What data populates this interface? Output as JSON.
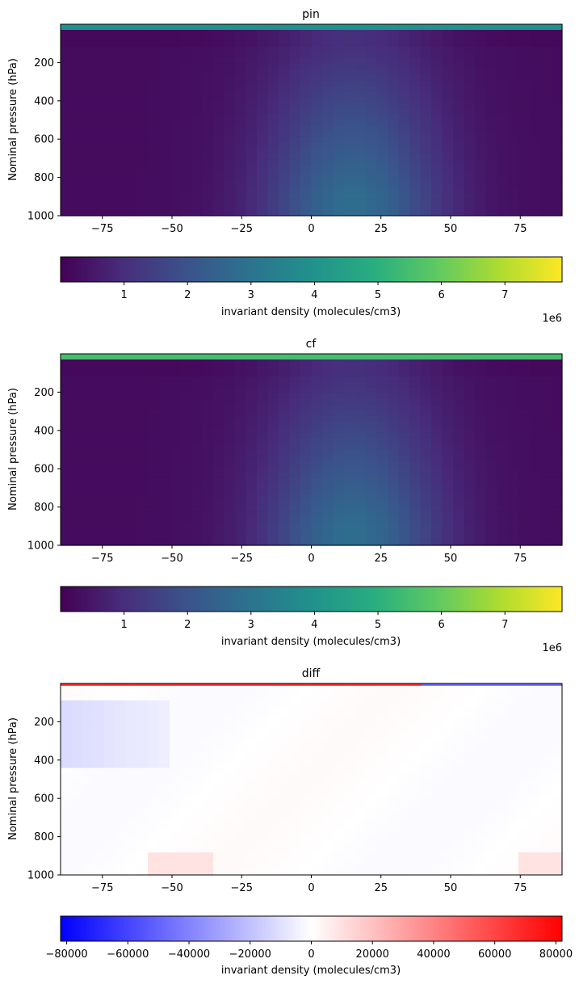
{
  "chart_data": [
    {
      "type": "heatmap",
      "title": "pin",
      "xlabel": "",
      "ylabel": "Nominal pressure (hPa)",
      "xlim": [
        -90,
        90
      ],
      "ylim": [
        1000,
        0
      ],
      "x_ticks": [
        -75,
        -50,
        -25,
        0,
        25,
        50,
        75
      ],
      "y_ticks": [
        200,
        400,
        600,
        800,
        1000
      ],
      "colormap": "viridis",
      "field": {
        "top_band_value": 4000000,
        "background_value": 250000,
        "blob": {
          "lat_center": 15,
          "lat_width": 32,
          "peak_value": 2800000,
          "pressure_extent": "500-1000"
        }
      },
      "colorbar": {
        "label": "invariant density (molecules/cm3)",
        "min": 0,
        "max": 7900000,
        "ticks": [
          1,
          2,
          3,
          4,
          5,
          6,
          7
        ],
        "tick_scale": 1000000,
        "offset_label": "1e6"
      }
    },
    {
      "type": "heatmap",
      "title": "cf",
      "xlabel": "",
      "ylabel": "Nominal pressure (hPa)",
      "xlim": [
        -90,
        90
      ],
      "ylim": [
        1000,
        0
      ],
      "x_ticks": [
        -75,
        -50,
        -25,
        0,
        25,
        50,
        75
      ],
      "y_ticks": [
        200,
        400,
        600,
        800,
        1000
      ],
      "colormap": "viridis",
      "field": {
        "top_band_value": 5500000,
        "background_value": 250000,
        "blob": {
          "lat_center": 15,
          "lat_width": 32,
          "peak_value": 2800000,
          "pressure_extent": "500-1000"
        }
      },
      "colorbar": {
        "label": "invariant density (molecules/cm3)",
        "min": 0,
        "max": 7900000,
        "ticks": [
          1,
          2,
          3,
          4,
          5,
          6,
          7
        ],
        "tick_scale": 1000000,
        "offset_label": "1e6"
      }
    },
    {
      "type": "heatmap",
      "title": "diff",
      "xlabel": "",
      "ylabel": "Nominal pressure (hPa)",
      "xlim": [
        -90,
        90
      ],
      "ylim": [
        1000,
        0
      ],
      "x_ticks": [
        -75,
        -50,
        -25,
        0,
        25,
        50,
        75
      ],
      "y_ticks": [
        200,
        400,
        600,
        800,
        1000
      ],
      "colormap": "bwr",
      "field": {
        "top_band": "red at left and center, blue at right",
        "blue_patch": {
          "lat_range": [
            -90,
            -50
          ],
          "pressure_range": [
            80,
            450
          ],
          "value": -12000
        },
        "background_value": 1500
      },
      "colorbar": {
        "label": "invariant density (molecules/cm3)",
        "min": -82000,
        "max": 82000,
        "ticks": [
          -80000,
          -60000,
          -40000,
          -20000,
          0,
          20000,
          40000,
          60000,
          80000
        ],
        "tick_labels": [
          "−80000",
          "−60000",
          "−40000",
          "−20000",
          "0",
          "20000",
          "40000",
          "60000",
          "80000"
        ],
        "tick_scale": 1,
        "offset_label": ""
      }
    }
  ]
}
